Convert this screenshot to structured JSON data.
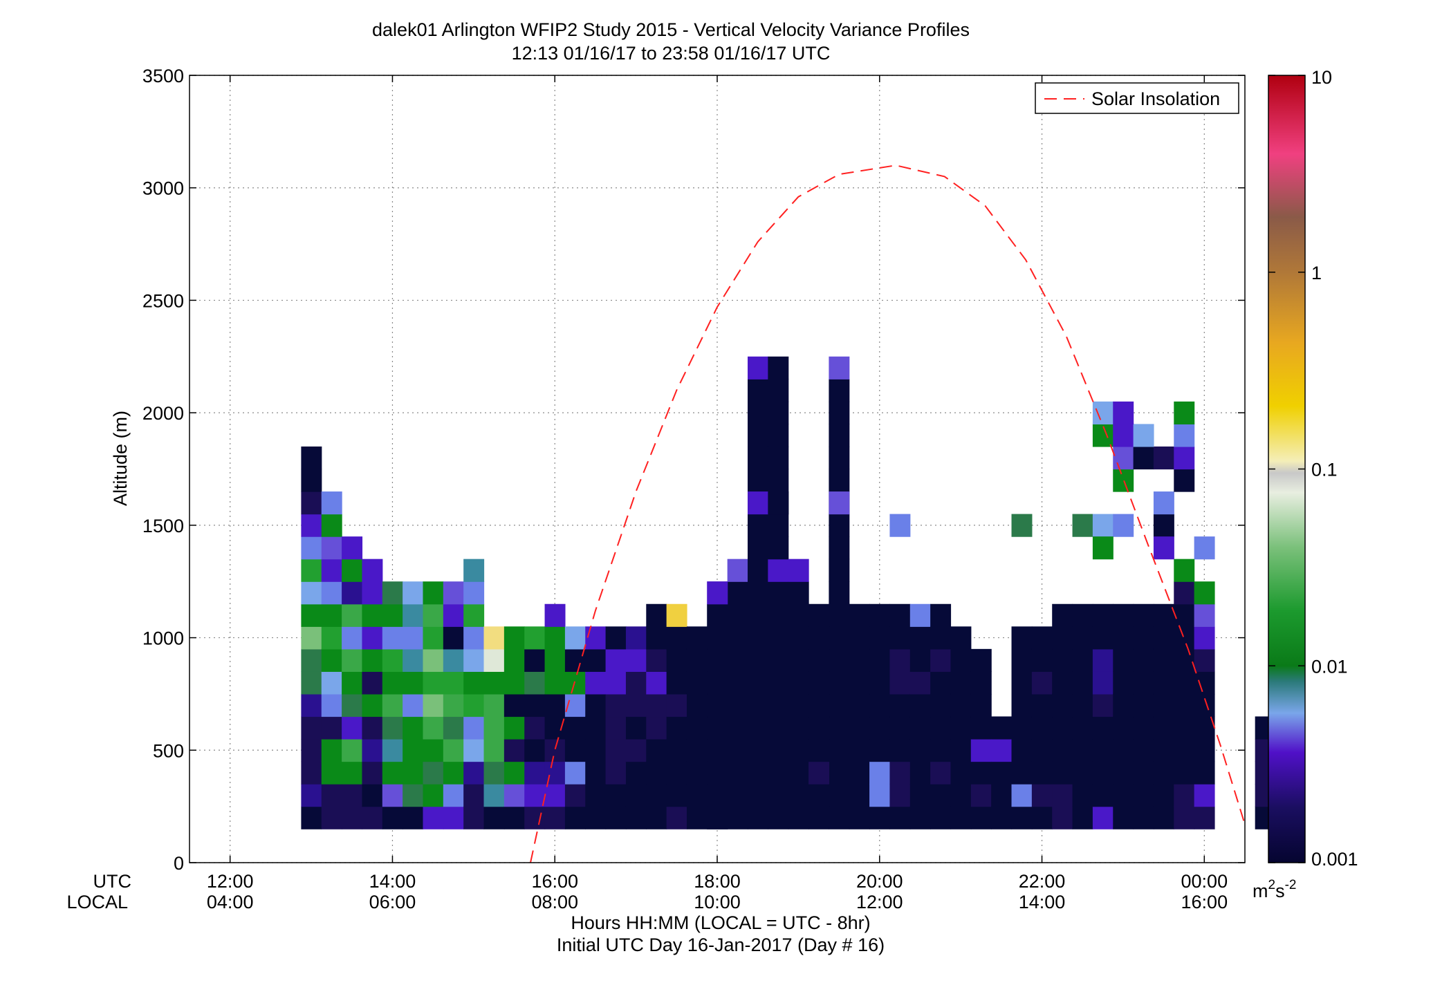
{
  "chart_data": {
    "type": "heatmap",
    "title": "dalek01 Arlington WFIP2 Study 2015 - Vertical Velocity Variance Profiles",
    "subtitle": "12:13 01/16/17 to 23:58 01/16/17  UTC",
    "ylabel": "Altitude (m)",
    "xlabel": "Hours HH:MM  (LOCAL = UTC - 8hr)",
    "xlabel2": "Initial UTC Day 16-Jan-2017 (Day # 16)",
    "utc_row_label": "UTC",
    "local_row_label": "LOCAL",
    "ylim": [
      0,
      3500
    ],
    "y_ticks": [
      0,
      500,
      1000,
      1500,
      2000,
      2500,
      3000,
      3500
    ],
    "xlim_hours": [
      11.5,
      24.5
    ],
    "x_ticks_hours": [
      12,
      14,
      16,
      18,
      20,
      22,
      24
    ],
    "x_tick_labels_utc": [
      "12:00",
      "14:00",
      "16:00",
      "18:00",
      "20:00",
      "22:00",
      "00:00"
    ],
    "x_tick_labels_local": [
      "04:00",
      "06:00",
      "08:00",
      "10:00",
      "12:00",
      "14:00",
      "16:00"
    ],
    "grid": true,
    "legend": {
      "label": "Solar Insolation",
      "placement": "top-right",
      "style": "red dashed line"
    },
    "colorbar": {
      "scale": "log",
      "min": 0.001,
      "max": 10,
      "tick_labels": [
        "0.001",
        "0.01",
        "0.1",
        "1",
        "10"
      ],
      "units": "m",
      "units_sup1": "2",
      "units_mid": "s",
      "units_sup2": "-2"
    },
    "time_bin_hours": 0.25,
    "height_bin_m": 100,
    "color_classes": {
      "n": "#060a38",
      "k": "#1a0e55",
      "d": "#2a1190",
      "p": "#4a18c8",
      "v": "#6650d8",
      "b": "#6a80e8",
      "c": "#7aa6ea",
      "t": "#3a8aa0",
      "s": "#2b7a4a",
      "g": "#0a8a18",
      "h": "#22a030",
      "m": "#3aa848",
      "l": "#7ac07a",
      "w": "#dfe8d8",
      "y": "#f2dd80",
      "Y": "#f0d040"
    },
    "profile_cells": [
      {
        "h": 24.75,
        "y0": 200,
        "c": "nkkkn"
      },
      {
        "h": 13,
        "y0": 200,
        "c": "ndkkkdsslgchbpknn"
      },
      {
        "h": 13.25,
        "y0": 200,
        "c": "kkggkbcghgbpvgb"
      },
      {
        "h": 13.5,
        "y0": 200,
        "c": "kkgmpsgmbmdgp"
      },
      {
        "h": 13.75,
        "y0": 200,
        "c": "knkdkgkgpgpp"
      },
      {
        "h": 14,
        "y0": 200,
        "c": "nvgtsmghbgs"
      },
      {
        "h": 14.25,
        "y0": 200,
        "c": "nsgggbgtbtc"
      },
      {
        "h": 14.5,
        "y0": 200,
        "c": "pgsgmlhlhmg"
      },
      {
        "h": 14.75,
        "y0": 200,
        "c": "pbgmsmhtnpv"
      },
      {
        "h": 15,
        "y0": 200,
        "c": "kkdcbhgcbhbt"
      },
      {
        "h": 15.25,
        "y0": 200,
        "c": "ntsmmmgwy"
      },
      {
        "h": 15.5,
        "y0": 200,
        "c": "nvgkgnggg"
      },
      {
        "h": 15.75,
        "y0": 200,
        "c": "kpdnknsnh"
      },
      {
        "h": 16,
        "y0": 200,
        "c": "kpdknngggp"
      },
      {
        "h": 16.25,
        "y0": 200,
        "c": "nkbnnbgnc"
      },
      {
        "h": 16.5,
        "y0": 200,
        "c": "nnnnnnpnp"
      },
      {
        "h": 16.75,
        "y0": 200,
        "c": "nnkkkkppn"
      },
      {
        "h": 17,
        "y0": 200,
        "c": "nnnknkkpd"
      },
      {
        "h": 17.25,
        "y0": 200,
        "c": "nnnnkkpknn"
      },
      {
        "h": 17.5,
        "y0": 200,
        "c": "knnnnknnnY"
      },
      {
        "h": 18,
        "y0": 200,
        "c": "nnnnnnnnnnp"
      },
      {
        "h": 18.25,
        "y0": 200,
        "c": "nnnnnnnnnnnv"
      },
      {
        "h": 18.5,
        "y0": 200,
        "c": "nnnnnnnnnnnnnnnnnnnnp"
      },
      {
        "h": 18.75,
        "y0": 200,
        "c": "nnnnnnnnnnnpnnnnnnnnn"
      },
      {
        "h": 19,
        "y0": 200,
        "c": "nnnnnnnnnnnp"
      },
      {
        "h": 19.5,
        "y0": 200,
        "c": "nnnnnnnnnnnnnnnnnnnnv"
      },
      {
        "h": 17.75,
        "y0": 200,
        "c": "nnnnnnnnn"
      },
      {
        "h": 18,
        "y0": 200,
        "c": "nnnnnnnnnnp"
      },
      {
        "h": 19.25,
        "y0": 200,
        "c": "nnknnnnnnn"
      },
      {
        "h": 19.75,
        "y0": 200,
        "c": "nnnnnnnnnn"
      },
      {
        "h": 20,
        "y0": 200,
        "c": "nbbnnnnnnn"
      },
      {
        "h": 20.25,
        "y0": 200,
        "c": "nkknnnkknn"
      },
      {
        "h": 20.5,
        "y0": 200,
        "c": "nnnnnnknnb"
      },
      {
        "h": 20.75,
        "y0": 200,
        "c": "nnknnnnknn"
      },
      {
        "h": 21,
        "y0": 200,
        "c": "nnnnnnnnn"
      },
      {
        "h": 21.25,
        "y0": 200,
        "c": "nknpnnnn"
      },
      {
        "h": 21.5,
        "y0": 200,
        "c": "nnnpn"
      },
      {
        "h": 21.75,
        "y0": 200,
        "c": "nbnnnnnnn"
      },
      {
        "h": 22,
        "y0": 200,
        "c": "nknnnnknn"
      },
      {
        "h": 22.25,
        "y0": 200,
        "c": "kknnnnnnnn"
      },
      {
        "h": 22.5,
        "y0": 200,
        "c": "nnnnnnnnnn"
      },
      {
        "h": 22.75,
        "y0": 200,
        "c": "pnnnnkddnn"
      },
      {
        "h": 23,
        "y0": 200,
        "c": "nnnnnnnnnn"
      },
      {
        "h": 23.25,
        "y0": 200,
        "c": "nnnnnnnnnn"
      },
      {
        "h": 23.5,
        "y0": 200,
        "c": "nnnnnnnnnn"
      },
      {
        "h": 23.75,
        "y0": 200,
        "c": "kknnnnnnnnk"
      },
      {
        "h": 24,
        "y0": 200,
        "c": "kpnnnnnkpvg"
      }
    ],
    "upper_cells": [
      {
        "h": 18.5,
        "alt": 1600,
        "c": "p"
      },
      {
        "h": 18.75,
        "alt": 1600,
        "c": "n"
      },
      {
        "h": 19.5,
        "alt": 1600,
        "c": "v"
      },
      {
        "h": 20.25,
        "alt": 1500,
        "c": "b"
      },
      {
        "h": 21.75,
        "alt": 1500,
        "c": "s"
      },
      {
        "h": 22.5,
        "alt": 1500,
        "c": "s"
      },
      {
        "h": 22.75,
        "alt": 1500,
        "c": "c"
      },
      {
        "h": 23,
        "alt": 1500,
        "c": "b"
      },
      {
        "h": 23.5,
        "alt": 1500,
        "c": "n"
      },
      {
        "h": 22.75,
        "alt": 1400,
        "c": "g"
      },
      {
        "h": 23.5,
        "alt": 1400,
        "c": "p"
      },
      {
        "h": 24,
        "alt": 1400,
        "c": "b"
      },
      {
        "h": 23.75,
        "alt": 1300,
        "c": "g"
      },
      {
        "h": 23.5,
        "alt": 1600,
        "c": "b"
      },
      {
        "h": 23,
        "alt": 1700,
        "c": "g"
      },
      {
        "h": 23.75,
        "alt": 1700,
        "c": "n"
      },
      {
        "h": 23,
        "alt": 1800,
        "c": "v"
      },
      {
        "h": 23.25,
        "alt": 1800,
        "c": "n"
      },
      {
        "h": 23.5,
        "alt": 1800,
        "c": "k"
      },
      {
        "h": 23.75,
        "alt": 1800,
        "c": "p"
      },
      {
        "h": 22.75,
        "alt": 1900,
        "c": "g"
      },
      {
        "h": 23,
        "alt": 1900,
        "c": "p"
      },
      {
        "h": 23.25,
        "alt": 1900,
        "c": "c"
      },
      {
        "h": 23.75,
        "alt": 1900,
        "c": "b"
      },
      {
        "h": 22.75,
        "alt": 2000,
        "c": "c"
      },
      {
        "h": 23,
        "alt": 2000,
        "c": "p"
      },
      {
        "h": 23.75,
        "alt": 2000,
        "c": "g"
      }
    ],
    "solar_insolation_curve": {
      "note_peak_hour": 20.2,
      "peak_altitude": 3100,
      "points": [
        [
          15.7,
          0
        ],
        [
          16.0,
          500
        ],
        [
          16.5,
          1120
        ],
        [
          17.0,
          1650
        ],
        [
          17.5,
          2100
        ],
        [
          18.0,
          2470
        ],
        [
          18.5,
          2760
        ],
        [
          19.0,
          2960
        ],
        [
          19.5,
          3060
        ],
        [
          20.2,
          3100
        ],
        [
          20.8,
          3050
        ],
        [
          21.3,
          2920
        ],
        [
          21.8,
          2680
        ],
        [
          22.3,
          2340
        ],
        [
          22.8,
          1900
        ],
        [
          23.3,
          1420
        ],
        [
          23.8,
          950
        ],
        [
          24.2,
          520
        ],
        [
          24.5,
          170
        ]
      ]
    }
  }
}
